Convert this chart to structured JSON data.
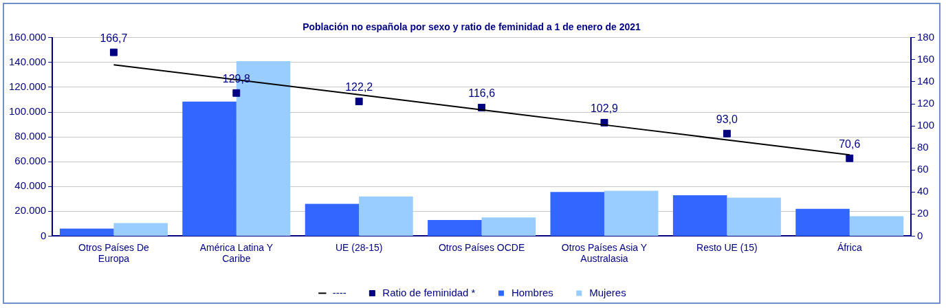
{
  "chart_data": {
    "type": "bar",
    "title": "Población no española por sexo y ratio de feminidad a 1 de enero de 2021",
    "categories": [
      "Otros Países De Europa",
      "América Latina Y Caribe",
      "UE (28-15)",
      "Otros Países OCDE",
      "Otros Países Asia Y Australasia",
      "Resto UE (15)",
      "África"
    ],
    "series": [
      {
        "name": "Hombres",
        "color": "#3366ff",
        "values": [
          6000,
          108500,
          26000,
          13000,
          35500,
          33000,
          22000
        ]
      },
      {
        "name": "Mujeres",
        "color": "#99ccff",
        "values": [
          10500,
          141000,
          32000,
          15000,
          36500,
          31000,
          16000
        ]
      },
      {
        "name": "Ratio de feminidad *",
        "type": "scatter",
        "axis": "y2",
        "color": "#000080",
        "marker": "square",
        "values": [
          166.7,
          129.8,
          122.2,
          116.6,
          102.9,
          93.0,
          70.6
        ],
        "value_labels": [
          "166,7",
          "129,8",
          "122,2",
          "116,6",
          "102,9",
          "93,0",
          "70,6"
        ]
      },
      {
        "name": "----",
        "type": "line",
        "axis": "y2",
        "color": "#000000",
        "marker": "none",
        "line_style": "solid",
        "values": [
          155.4,
          141.8,
          128.2,
          114.5,
          100.9,
          87.3,
          73.7
        ]
      }
    ],
    "ylim": [
      0,
      160000
    ],
    "yticks": [
      {
        "value": 0,
        "label": "0"
      },
      {
        "value": 20000,
        "label": "20.000"
      },
      {
        "value": 40000,
        "label": "40.000"
      },
      {
        "value": 60000,
        "label": "60.000"
      },
      {
        "value": 80000,
        "label": "80.000"
      },
      {
        "value": 100000,
        "label": "100.000"
      },
      {
        "value": 120000,
        "label": "120.000"
      },
      {
        "value": 140000,
        "label": "140.000"
      },
      {
        "value": 160000,
        "label": "160.000"
      }
    ],
    "y2lim": [
      0,
      180
    ],
    "y2ticks": [
      0,
      20,
      40,
      60,
      80,
      100,
      120,
      140,
      160,
      180
    ],
    "grid": "y",
    "legend": "bottom"
  }
}
